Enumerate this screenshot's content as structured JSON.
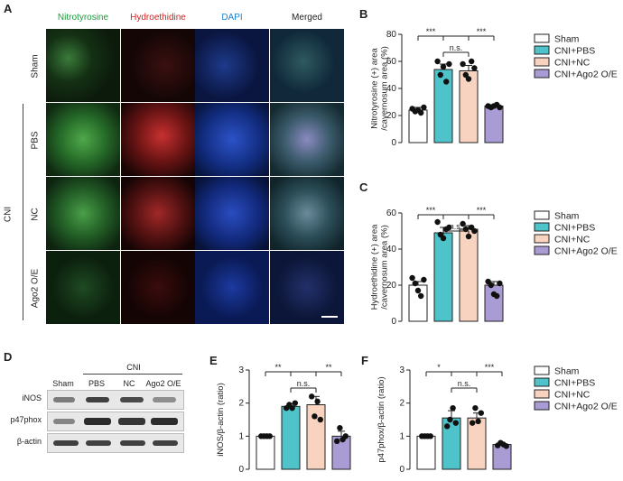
{
  "panels": {
    "A": "A",
    "B": "B",
    "C": "C",
    "D": "D",
    "E": "E",
    "F": "F"
  },
  "microscopy": {
    "columns": [
      {
        "label": "Nitrotyrosine",
        "color": "#1a9a3a"
      },
      {
        "label": "Hydroethidine",
        "color": "#d4201c"
      },
      {
        "label": "DAPI",
        "color": "#1d7fd1"
      },
      {
        "label": "Merged",
        "color": "#222222"
      }
    ],
    "rows": [
      "Sham",
      "PBS",
      "NC",
      "Ago2 O/E"
    ],
    "group_label": "CNI"
  },
  "western_blot": {
    "group_label": "CNI",
    "lanes": [
      "Sham",
      "PBS",
      "NC",
      "Ago2 O/E"
    ],
    "blots": [
      {
        "label": "iNOS",
        "intensity": [
          0.55,
          0.85,
          0.8,
          0.45
        ]
      },
      {
        "label": "p47phox",
        "intensity": [
          0.5,
          0.95,
          0.9,
          0.95
        ]
      },
      {
        "label": "β-actin",
        "intensity": [
          0.85,
          0.85,
          0.85,
          0.85
        ]
      }
    ]
  },
  "legend": {
    "entries": [
      "Sham",
      "CNI+PBS",
      "CNI+NC",
      "CNI+Ago2 O/E"
    ],
    "colors": [
      "#ffffff",
      "#4ec3c9",
      "#f8d3c0",
      "#a99bd3"
    ]
  },
  "chart_data": [
    {
      "panel": "B",
      "type": "bar",
      "categories": [
        "Sham",
        "CNI+PBS",
        "CNI+NC",
        "CNI+Ago2 O/E"
      ],
      "values": [
        24,
        54,
        53,
        27
      ],
      "errors": [
        2,
        4,
        4,
        1
      ],
      "points": [
        [
          25,
          23,
          24,
          22,
          26
        ],
        [
          60,
          50,
          56,
          45,
          58
        ],
        [
          58,
          50,
          47,
          60,
          55
        ],
        [
          27,
          26,
          27,
          28,
          26
        ]
      ],
      "ylabel": "Nitrotyrosine (+) area\n/cavernosum area (%)",
      "ylim": [
        0,
        80
      ],
      "yticks": [
        0,
        20,
        40,
        60,
        80
      ],
      "significance": [
        {
          "from": 0,
          "to": 1,
          "label": "***"
        },
        {
          "from": 2,
          "to": 3,
          "label": "***"
        },
        {
          "from": 1,
          "to": 2,
          "label": "n.s."
        }
      ]
    },
    {
      "panel": "C",
      "type": "bar",
      "categories": [
        "Sham",
        "CNI+PBS",
        "CNI+NC",
        "CNI+Ago2 O/E"
      ],
      "values": [
        20,
        49,
        51,
        20
      ],
      "errors": [
        2,
        3,
        2,
        2
      ],
      "points": [
        [
          24,
          21,
          17,
          14,
          23
        ],
        [
          55,
          48,
          46,
          51,
          52
        ],
        [
          54,
          51,
          47,
          52,
          50
        ],
        [
          22,
          20,
          15,
          14,
          21
        ]
      ],
      "ylabel": "Hydroethidine (+) area\n/cavernosum area (%)",
      "ylim": [
        0,
        60
      ],
      "yticks": [
        0,
        20,
        40,
        60
      ],
      "significance": [
        {
          "from": 0,
          "to": 1,
          "label": "***"
        },
        {
          "from": 2,
          "to": 3,
          "label": "***"
        },
        {
          "from": 1,
          "to": 2,
          "label": "n.s."
        }
      ]
    },
    {
      "panel": "E",
      "type": "bar",
      "categories": [
        "Sham",
        "CNI+PBS",
        "CNI+NC",
        "CNI+Ago2 O/E"
      ],
      "values": [
        1.0,
        1.9,
        1.95,
        1.0
      ],
      "errors": [
        0.02,
        0.08,
        0.25,
        0.15
      ],
      "points": [
        [
          1,
          1,
          1,
          1
        ],
        [
          1.85,
          1.95,
          1.85,
          2.0
        ],
        [
          2.2,
          1.6,
          2.05,
          1.5
        ],
        [
          0.85,
          1.25,
          0.9,
          1.0
        ]
      ],
      "ylabel": "iNOS/β-actin (ratio)",
      "ylim": [
        0,
        3
      ],
      "yticks": [
        0,
        1,
        2,
        3
      ],
      "significance": [
        {
          "from": 0,
          "to": 1,
          "label": "**"
        },
        {
          "from": 2,
          "to": 3,
          "label": "**"
        },
        {
          "from": 1,
          "to": 2,
          "label": "n.s."
        }
      ]
    },
    {
      "panel": "F",
      "type": "bar",
      "categories": [
        "Sham",
        "CNI+PBS",
        "CNI+NC",
        "CNI+Ago2 O/E"
      ],
      "values": [
        1.0,
        1.55,
        1.55,
        0.75
      ],
      "errors": [
        0.01,
        0.22,
        0.15,
        0.04
      ],
      "points": [
        [
          1,
          1,
          1,
          1
        ],
        [
          1.3,
          1.5,
          1.85,
          1.4
        ],
        [
          1.4,
          1.85,
          1.45,
          1.7
        ],
        [
          0.72,
          0.8,
          0.75,
          0.7
        ]
      ],
      "ylabel": "p47phox/β-actin (ratio)",
      "ylim": [
        0,
        3
      ],
      "yticks": [
        0,
        1,
        2,
        3
      ],
      "significance": [
        {
          "from": 0,
          "to": 1,
          "label": "*"
        },
        {
          "from": 2,
          "to": 3,
          "label": "***"
        },
        {
          "from": 1,
          "to": 2,
          "label": "n.s."
        }
      ]
    }
  ]
}
